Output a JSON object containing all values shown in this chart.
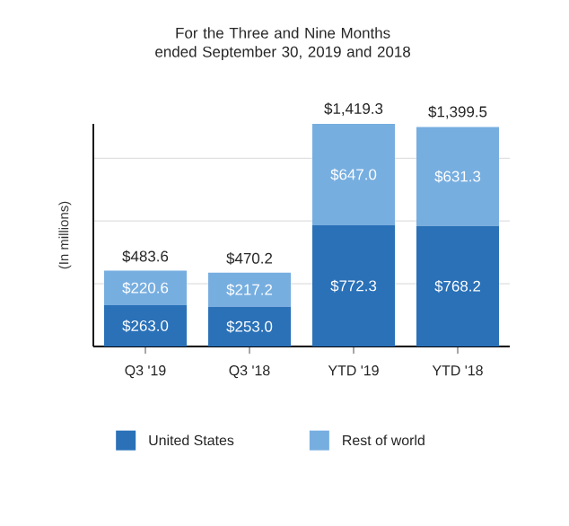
{
  "chart_data": {
    "type": "bar",
    "stacked": true,
    "title": "For the Three and Nine Months ended September 30, 2019 and 2018",
    "ylabel": "(In millions)",
    "categories": [
      "Q3 '19",
      "Q3 '18",
      "YTD '19",
      "YTD '18"
    ],
    "series": [
      {
        "name": "United States",
        "color": "#2a71b8",
        "values": [
          263.0,
          253.0,
          772.3,
          768.2
        ],
        "value_labels": [
          "$263.0",
          "$253.0",
          "$772.3",
          "$768.2"
        ]
      },
      {
        "name": "Rest of world",
        "color": "#77aee0",
        "values": [
          220.6,
          217.2,
          647.0,
          631.3
        ],
        "value_labels": [
          "$220.6",
          "$217.2",
          "$647.0",
          "$631.3"
        ]
      }
    ],
    "totals": [
      "$483.6",
      "$470.2",
      "$1,419.3",
      "$1,399.5"
    ],
    "yticks": [
      {
        "value": 400,
        "label": null
      },
      {
        "value": 800,
        "label": null
      },
      {
        "value": 1200,
        "label": null
      }
    ],
    "tick_labels": "x",
    "grid": "y",
    "legend": "bottom"
  }
}
